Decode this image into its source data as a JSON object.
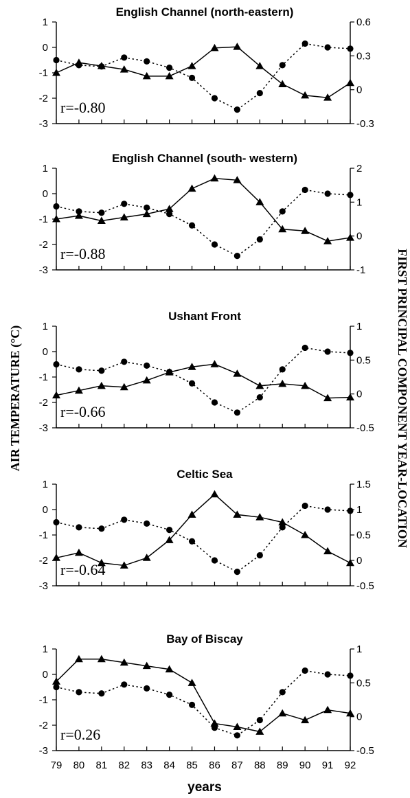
{
  "figure": {
    "left_axis_title": "AIR TEMPERATURE (°C)",
    "right_axis_title": "FIRST PRINCIPAL COMPONENT YEAR-LOCATION",
    "xlabel": "years",
    "x_tick_labels": [
      "79",
      "80",
      "81",
      "82",
      "83",
      "84",
      "85",
      "86",
      "87",
      "88",
      "89",
      "90",
      "91",
      "92"
    ]
  },
  "chart_data": [
    {
      "type": "line",
      "title": "English Channel (north-eastern)",
      "annotation": "r=-0.80",
      "x": [
        79,
        80,
        81,
        82,
        83,
        84,
        85,
        86,
        87,
        88,
        89,
        90,
        91,
        92
      ],
      "ylim_left": [
        -3,
        1
      ],
      "ylim_right": [
        -0.3,
        0.6
      ],
      "yticks_left": [
        "1",
        "0",
        "-1",
        "-2",
        "-3"
      ],
      "yticks_right": [
        "0.6",
        "0.3",
        "0",
        "-0.3"
      ],
      "series": [
        {
          "axis": "left",
          "marker": "circle",
          "style": "dotted",
          "values": [
            -0.5,
            -0.7,
            -0.75,
            -0.4,
            -0.55,
            -0.8,
            -1.2,
            -2.0,
            -2.45,
            -1.8,
            -0.7,
            0.15,
            0.0,
            -0.05
          ]
        },
        {
          "axis": "right",
          "marker": "triangle",
          "style": "solid",
          "values": [
            0.15,
            0.24,
            0.21,
            0.18,
            0.12,
            0.12,
            0.21,
            0.37,
            0.38,
            0.21,
            0.05,
            -0.05,
            -0.07,
            0.06
          ]
        }
      ]
    },
    {
      "type": "line",
      "title": "English Channel (south- western)",
      "annotation": "r=-0.88",
      "x": [
        79,
        80,
        81,
        82,
        83,
        84,
        85,
        86,
        87,
        88,
        89,
        90,
        91,
        92
      ],
      "ylim_left": [
        -3,
        1
      ],
      "ylim_right": [
        -1,
        2
      ],
      "yticks_left": [
        "1",
        "0",
        "-1",
        "-2",
        "-3"
      ],
      "yticks_right": [
        "2",
        "1",
        "0",
        "-1"
      ],
      "series": [
        {
          "axis": "left",
          "marker": "circle",
          "style": "dotted",
          "values": [
            -0.5,
            -0.7,
            -0.75,
            -0.4,
            -0.55,
            -0.8,
            -1.25,
            -2.0,
            -2.45,
            -1.8,
            -0.7,
            0.15,
            0.0,
            -0.05
          ]
        },
        {
          "axis": "right",
          "marker": "triangle",
          "style": "solid",
          "values": [
            0.5,
            0.6,
            0.45,
            0.55,
            0.65,
            0.8,
            1.4,
            1.7,
            1.65,
            1.0,
            0.2,
            0.15,
            -0.15,
            -0.05
          ]
        }
      ]
    },
    {
      "type": "line",
      "title": "Ushant  Front",
      "annotation": "r=-0.66",
      "x": [
        79,
        80,
        81,
        82,
        83,
        84,
        85,
        86,
        87,
        88,
        89,
        90,
        91,
        92
      ],
      "ylim_left": [
        -3,
        1
      ],
      "ylim_right": [
        -0.5,
        1
      ],
      "yticks_left": [
        "1",
        "0",
        "-1",
        "-2",
        "-3"
      ],
      "yticks_right": [
        "1",
        "0.5",
        "0",
        "-0.5"
      ],
      "series": [
        {
          "axis": "left",
          "marker": "circle",
          "style": "dotted",
          "values": [
            -0.5,
            -0.7,
            -0.75,
            -0.4,
            -0.55,
            -0.8,
            -1.25,
            -2.0,
            -2.4,
            -1.8,
            -0.7,
            0.15,
            0.0,
            -0.05
          ]
        },
        {
          "axis": "right",
          "marker": "triangle",
          "style": "solid",
          "values": [
            -0.02,
            0.05,
            0.12,
            0.1,
            0.2,
            0.32,
            0.4,
            0.44,
            0.3,
            0.12,
            0.15,
            0.12,
            -0.06,
            -0.05
          ]
        }
      ]
    },
    {
      "type": "line",
      "title": "Celtic Sea",
      "annotation": "r=-0.64",
      "x": [
        79,
        80,
        81,
        82,
        83,
        84,
        85,
        86,
        87,
        88,
        89,
        90,
        91,
        92
      ],
      "ylim_left": [
        -3,
        1
      ],
      "ylim_right": [
        -0.5,
        1.5
      ],
      "yticks_left": [
        "1",
        "0",
        "-1",
        "-2",
        "-3"
      ],
      "yticks_right": [
        "1.5",
        "1",
        "0.5",
        "0",
        "-0.5"
      ],
      "series": [
        {
          "axis": "left",
          "marker": "circle",
          "style": "dotted",
          "values": [
            -0.5,
            -0.7,
            -0.75,
            -0.4,
            -0.55,
            -0.8,
            -1.25,
            -2.0,
            -2.45,
            -1.8,
            -0.7,
            0.15,
            0.0,
            -0.05
          ]
        },
        {
          "axis": "right",
          "marker": "triangle",
          "style": "solid",
          "values": [
            0.05,
            0.15,
            -0.05,
            -0.1,
            0.05,
            0.4,
            0.9,
            1.3,
            0.9,
            0.85,
            0.75,
            0.5,
            0.18,
            -0.05
          ]
        }
      ]
    },
    {
      "type": "line",
      "title": "Bay of Biscay",
      "annotation": "r=0.26",
      "x": [
        79,
        80,
        81,
        82,
        83,
        84,
        85,
        86,
        87,
        88,
        89,
        90,
        91,
        92
      ],
      "ylim_left": [
        -3,
        1
      ],
      "ylim_right": [
        -0.5,
        1
      ],
      "yticks_left": [
        "1",
        "0",
        "-1",
        "-2",
        "-3"
      ],
      "yticks_right": [
        "1",
        "0.5",
        "0",
        "-0.5"
      ],
      "series": [
        {
          "axis": "left",
          "marker": "circle",
          "style": "dotted",
          "values": [
            -0.5,
            -0.7,
            -0.75,
            -0.4,
            -0.55,
            -0.8,
            -1.2,
            -2.1,
            -2.4,
            -1.8,
            -0.7,
            0.15,
            0.0,
            -0.05
          ]
        },
        {
          "axis": "right",
          "marker": "triangle",
          "style": "solid",
          "values": [
            0.52,
            0.85,
            0.85,
            0.8,
            0.75,
            0.7,
            0.5,
            -0.1,
            -0.15,
            -0.22,
            0.05,
            -0.05,
            0.1,
            0.05
          ]
        }
      ]
    }
  ]
}
